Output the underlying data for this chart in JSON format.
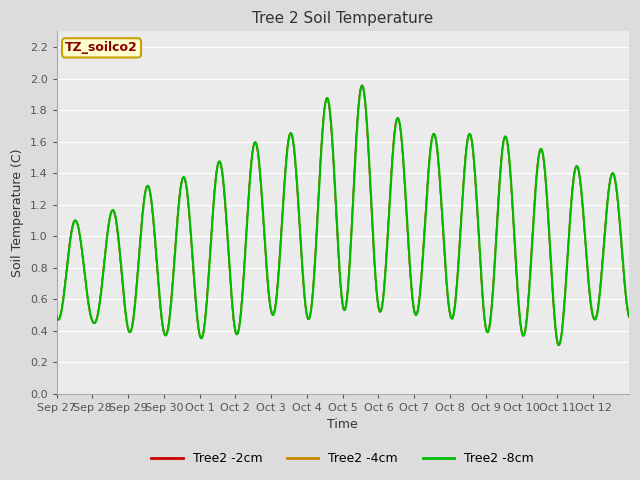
{
  "title": "Tree 2 Soil Temperature",
  "ylabel": "Soil Temperature (C)",
  "xlabel": "Time",
  "annotation_text": "TZ_soilco2",
  "annotation_color": "#8B0000",
  "annotation_bg": "#FFFFCC",
  "annotation_border": "#C8A000",
  "ylim": [
    0.0,
    2.3
  ],
  "yticks": [
    0.0,
    0.2,
    0.4,
    0.6,
    0.8,
    1.0,
    1.2,
    1.4,
    1.6,
    1.8,
    2.0,
    2.2
  ],
  "bg_color": "#DCDCDC",
  "plot_bg": "#EBEBEB",
  "grid_color": "#FFFFFF",
  "line_colors": {
    "2cm": "#CC0000",
    "4cm": "#CC8800",
    "8cm": "#00BB00"
  },
  "line_widths": {
    "2cm": 1.0,
    "4cm": 1.0,
    "8cm": 1.5
  },
  "legend_labels": [
    "Tree2 -2cm",
    "Tree2 -4cm",
    "Tree2 -8cm"
  ],
  "xtick_labels": [
    "Sep 27",
    "Sep 28",
    "Sep 29",
    "Sep 30",
    "Oct 1",
    "Oct 2",
    "Oct 3",
    "Oct 4",
    "Oct 5",
    "Oct 6",
    "Oct 7",
    "Oct 8",
    "Oct 9",
    "Oct 10",
    "Oct 11",
    "Oct 12"
  ],
  "title_fontsize": 11,
  "axis_label_fontsize": 9,
  "tick_fontsize": 8,
  "legend_fontsize": 9
}
